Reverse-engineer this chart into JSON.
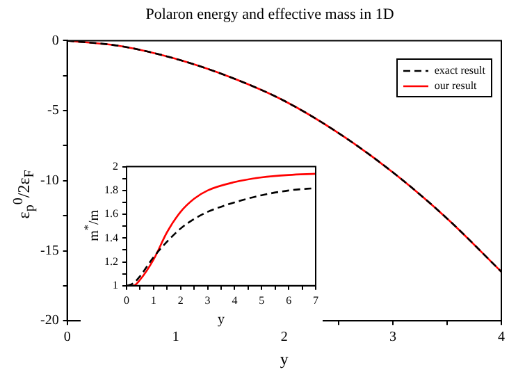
{
  "chart_data": [
    {
      "type": "line",
      "title": "Polaron energy and effective mass in 1D",
      "xlabel": "y",
      "ylabel": "ε$_{p}$$^{0}$/2ε$_{F}$",
      "x": [
        0,
        0.5,
        1,
        1.5,
        2,
        2.5,
        3,
        3.5,
        4
      ],
      "series": [
        {
          "name": "exact result",
          "color": "#000000",
          "line_style": "dashed",
          "values": [
            0,
            -0.4,
            -1.3,
            -2.6,
            -4.3,
            -6.6,
            -9.4,
            -12.7,
            -16.5
          ]
        },
        {
          "name": "our result",
          "color": "#ff0000",
          "line_style": "solid",
          "values": [
            0,
            -0.4,
            -1.3,
            -2.6,
            -4.3,
            -6.6,
            -9.4,
            -12.7,
            -16.5
          ]
        }
      ],
      "xlim": [
        0,
        4
      ],
      "xticks": [
        0,
        {
          "value": 0.5,
          "label": null
        },
        1,
        {
          "value": 1.5,
          "label": null
        },
        2,
        {
          "value": 2.5,
          "label": null
        },
        3,
        {
          "value": 3.5,
          "label": null
        },
        4
      ],
      "ylim": [
        -20,
        0
      ],
      "yticks": [
        -20,
        {
          "value": -17.5,
          "label": null
        },
        -15,
        {
          "value": -12.5,
          "label": null
        },
        -10,
        {
          "value": -7.5,
          "label": null
        },
        -5,
        {
          "value": -2.5,
          "label": null
        },
        0
      ],
      "legend": "top right",
      "marker": "none",
      "grid": false
    },
    {
      "type": "line",
      "xlabel": "y",
      "ylabel": "m$^{*}$/m",
      "x": [
        0,
        0.25,
        0.5,
        1,
        1.5,
        2,
        2.5,
        3,
        4,
        5,
        6,
        7
      ],
      "series": [
        {
          "color": "#000000",
          "line_style": "dashed",
          "values": [
            1,
            1.02,
            1.08,
            1.24,
            1.37,
            1.48,
            1.56,
            1.62,
            1.7,
            1.76,
            1.8,
            1.82
          ]
        },
        {
          "color": "#ff0000",
          "line_style": "solid",
          "values": [
            1,
            1.0,
            1.05,
            1.22,
            1.45,
            1.62,
            1.73,
            1.8,
            1.87,
            1.91,
            1.93,
            1.94
          ]
        }
      ],
      "xlim": [
        0,
        7
      ],
      "xticks": [
        0,
        {
          "value": 0.5,
          "label": null
        },
        1,
        {
          "value": 1.5,
          "label": null
        },
        2,
        {
          "value": 2.5,
          "label": null
        },
        3,
        {
          "value": 3.5,
          "label": null
        },
        4,
        {
          "value": 4.5,
          "label": null
        },
        5,
        {
          "value": 5.5,
          "label": null
        },
        6,
        {
          "value": 6.5,
          "label": null
        },
        7
      ],
      "ylim": [
        1,
        2
      ],
      "yticks": [
        1,
        {
          "value": 1.1,
          "label": null
        },
        1.2,
        {
          "value": 1.3,
          "label": null
        },
        1.4,
        {
          "value": 1.5,
          "label": null
        },
        1.6,
        {
          "value": 1.7,
          "label": null
        },
        1.8,
        {
          "value": 1.9,
          "label": null
        },
        2
      ],
      "marker": "none",
      "grid": false
    }
  ]
}
